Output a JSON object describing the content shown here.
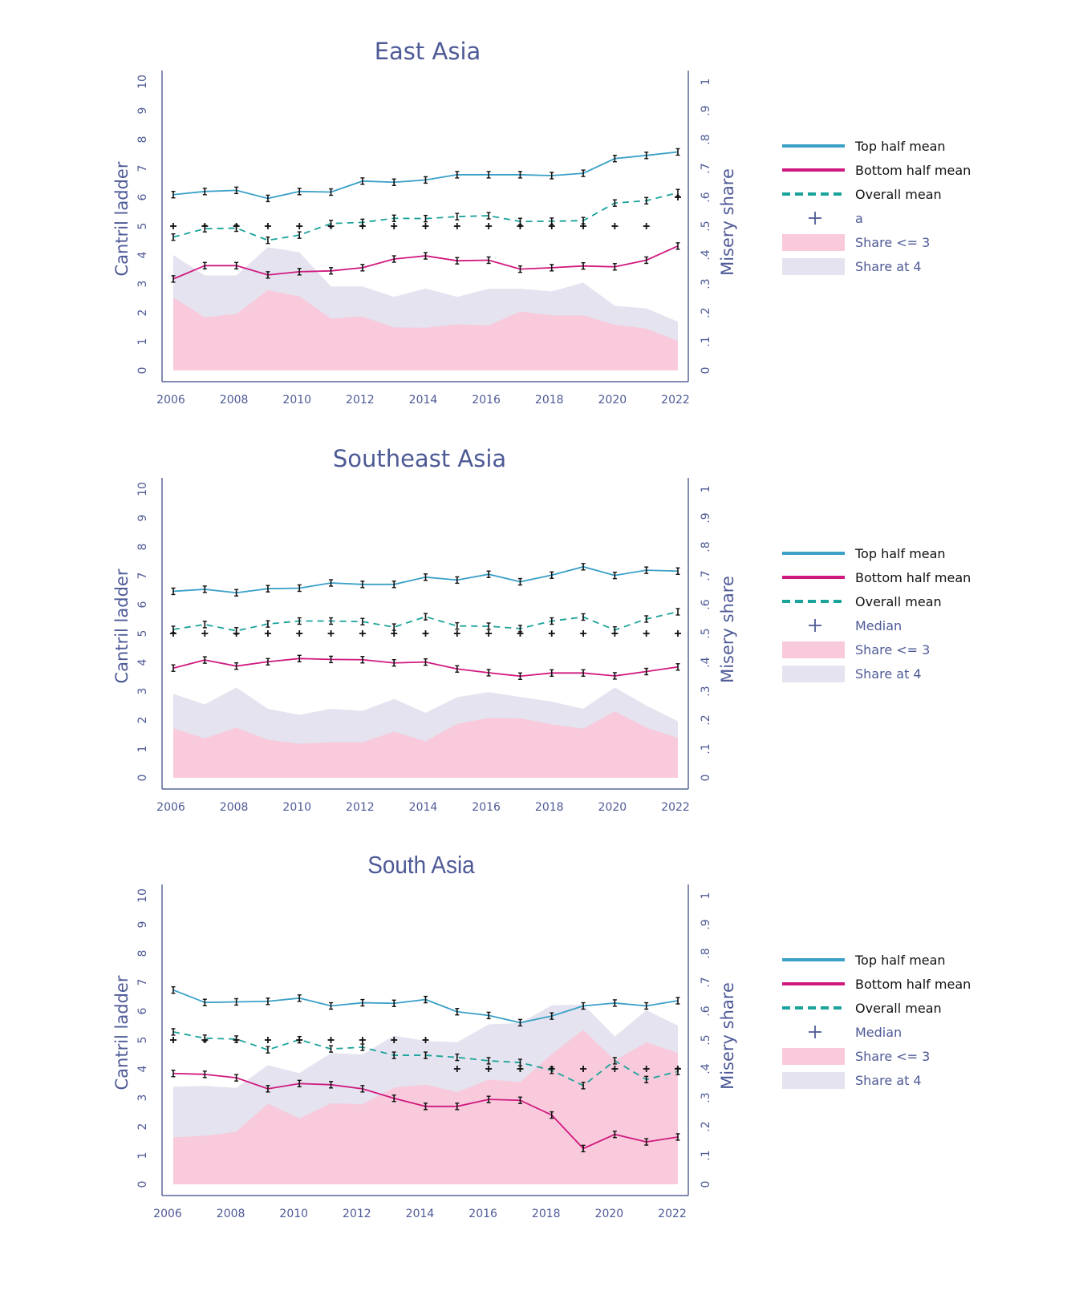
{
  "colors": {
    "top_half": "#3aa0c8",
    "bottom_half": "#d0197f",
    "overall": "#1aa39a",
    "median": "#111111",
    "share_le3": "#f8cadb",
    "share_at4": "#e4e3ef",
    "axis": "#5a6699",
    "text": "#4e5a96",
    "legend_dark": "#111111"
  },
  "chart_data": [
    {
      "type": "line",
      "title": "East Asia",
      "ylabel": "Cantril ladder",
      "ylabel_right": "Misery share",
      "ylim": [
        0,
        10
      ],
      "ylim_right": [
        0,
        1
      ],
      "yticks": [
        "0",
        "1",
        "2",
        "3",
        "4",
        "5",
        "6",
        "7",
        "8",
        "9",
        "10"
      ],
      "yticks_right": [
        "0",
        ".1",
        ".2",
        ".3",
        ".4",
        ".5",
        ".6",
        ".7",
        ".8",
        ".9",
        "1"
      ],
      "xticks": [
        "2006",
        "2008",
        "2010",
        "2012",
        "2014",
        "2016",
        "2018",
        "2020",
        "2022"
      ],
      "x": [
        2006,
        2007,
        2008,
        2009,
        2010,
        2011,
        2012,
        2013,
        2014,
        2015,
        2016,
        2017,
        2018,
        2019,
        2020,
        2021,
        2022
      ],
      "grid": false,
      "legend_placement": "right",
      "legend": [
        "Top half mean",
        "Bottom half mean",
        "Overall mean",
        "a",
        "Share <= 3",
        "Share at 4"
      ],
      "series": [
        {
          "name": "Top half mean",
          "axis": "left",
          "values": [
            6.09,
            6.2,
            6.24,
            5.96,
            6.2,
            6.18,
            6.56,
            6.52,
            6.6,
            6.78,
            6.78,
            6.78,
            6.75,
            6.83,
            7.34,
            7.45,
            7.57
          ]
        },
        {
          "name": "Bottom half mean",
          "axis": "left",
          "values": [
            3.17,
            3.63,
            3.63,
            3.31,
            3.42,
            3.45,
            3.56,
            3.86,
            3.97,
            3.8,
            3.82,
            3.51,
            3.56,
            3.62,
            3.59,
            3.82,
            4.31
          ]
        },
        {
          "name": "Overall mean",
          "axis": "left",
          "values": [
            4.62,
            4.91,
            4.93,
            4.51,
            4.69,
            5.09,
            5.13,
            5.27,
            5.26,
            5.33,
            5.36,
            5.16,
            5.17,
            5.19,
            5.8,
            5.88,
            6.16
          ]
        },
        {
          "name": "a",
          "axis": "left",
          "values": [
            5,
            5,
            5,
            5,
            5,
            5,
            5,
            5,
            5,
            5,
            5,
            5,
            5,
            5,
            5,
            5,
            6
          ]
        },
        {
          "name": "Share <= 3",
          "axis": "right",
          "values": [
            0.253,
            0.184,
            0.196,
            0.278,
            0.256,
            0.18,
            0.187,
            0.149,
            0.148,
            0.16,
            0.156,
            0.204,
            0.191,
            0.191,
            0.158,
            0.145,
            0.102
          ]
        },
        {
          "name": "Share at 4",
          "axis": "right",
          "values": [
            0.147,
            0.145,
            0.133,
            0.149,
            0.153,
            0.111,
            0.104,
            0.106,
            0.136,
            0.095,
            0.127,
            0.079,
            0.083,
            0.113,
            0.066,
            0.07,
            0.067
          ]
        }
      ]
    },
    {
      "type": "line",
      "title": "Southeast Asia",
      "ylabel": "Cantril ladder",
      "ylabel_right": "Misery share",
      "ylim": [
        0,
        10
      ],
      "ylim_right": [
        0,
        1
      ],
      "yticks": [
        "0",
        "1",
        "2",
        "3",
        "4",
        "5",
        "6",
        "7",
        "8",
        "9",
        "10"
      ],
      "yticks_right": [
        "0",
        ".1",
        ".2",
        ".3",
        ".4",
        ".5",
        ".6",
        ".7",
        ".8",
        ".9",
        "1"
      ],
      "xticks": [
        "2006",
        "2008",
        "2010",
        "2012",
        "2014",
        "2016",
        "2018",
        "2020",
        "2022"
      ],
      "x": [
        2006,
        2007,
        2008,
        2009,
        2010,
        2011,
        2012,
        2013,
        2014,
        2015,
        2016,
        2017,
        2018,
        2019,
        2020,
        2021,
        2022
      ],
      "grid": false,
      "legend_placement": "right",
      "legend": [
        "Top half mean",
        "Bottom half mean",
        "Overall mean",
        "Median",
        "Share <= 3",
        "Share at 4"
      ],
      "series": [
        {
          "name": "Top half mean",
          "axis": "left",
          "values": [
            6.46,
            6.53,
            6.41,
            6.55,
            6.57,
            6.75,
            6.7,
            6.7,
            6.95,
            6.85,
            7.05,
            6.79,
            7.02,
            7.31,
            7.01,
            7.19,
            7.16
          ]
        },
        {
          "name": "Bottom half mean",
          "axis": "left",
          "values": [
            3.8,
            4.08,
            3.87,
            4.02,
            4.13,
            4.1,
            4.09,
            3.98,
            4.01,
            3.77,
            3.64,
            3.52,
            3.63,
            3.63,
            3.53,
            3.68,
            3.84
          ]
        },
        {
          "name": "Overall mean",
          "axis": "left",
          "values": [
            5.14,
            5.31,
            5.09,
            5.33,
            5.43,
            5.43,
            5.41,
            5.22,
            5.58,
            5.26,
            5.25,
            5.17,
            5.43,
            5.57,
            5.12,
            5.5,
            5.75
          ]
        },
        {
          "name": "Median",
          "axis": "left",
          "values": [
            5,
            5,
            5,
            5,
            5,
            5,
            5,
            5,
            5,
            5,
            5,
            5,
            5,
            5,
            5,
            5,
            5
          ]
        },
        {
          "name": "Share <= 3",
          "axis": "right",
          "values": [
            0.172,
            0.136,
            0.174,
            0.132,
            0.118,
            0.123,
            0.123,
            0.16,
            0.126,
            0.187,
            0.207,
            0.206,
            0.185,
            0.17,
            0.23,
            0.174,
            0.138
          ]
        },
        {
          "name": "Share at 4",
          "axis": "right",
          "values": [
            0.119,
            0.118,
            0.139,
            0.107,
            0.1,
            0.116,
            0.109,
            0.113,
            0.099,
            0.092,
            0.09,
            0.074,
            0.079,
            0.069,
            0.083,
            0.076,
            0.058
          ]
        }
      ]
    },
    {
      "type": "line",
      "title": "South Asia",
      "ylabel": "Cantril ladder",
      "ylabel_right": "Misery share",
      "ylim": [
        0,
        10
      ],
      "ylim_right": [
        0,
        1
      ],
      "yticks": [
        "0",
        "1",
        "2",
        "3",
        "4",
        "5",
        "6",
        "7",
        "8",
        "9",
        "10"
      ],
      "yticks_right": [
        "0",
        ".1",
        ".2",
        ".3",
        ".4",
        ".5",
        ".6",
        ".7",
        ".8",
        ".9",
        "1"
      ],
      "xticks": [
        "2006",
        "2008",
        "2010",
        "2012",
        "2014",
        "2016",
        "2018",
        "2020",
        "2022"
      ],
      "x": [
        2006,
        2007,
        2008,
        2009,
        2010,
        2011,
        2012,
        2013,
        2014,
        2015,
        2016,
        2017,
        2018,
        2019,
        2020,
        2021,
        2022
      ],
      "grid": false,
      "legend_placement": "right",
      "legend": [
        "Top half mean",
        "Bottom half mean",
        "Overall mean",
        "Median",
        "Share <= 3",
        "Share at 4"
      ],
      "series": [
        {
          "name": "Top half mean",
          "axis": "left",
          "values": [
            6.73,
            6.3,
            6.32,
            6.34,
            6.45,
            6.18,
            6.29,
            6.27,
            6.4,
            5.98,
            5.85,
            5.6,
            5.83,
            6.18,
            6.28,
            6.18,
            6.36
          ]
        },
        {
          "name": "Bottom half mean",
          "axis": "left",
          "values": [
            3.84,
            3.81,
            3.69,
            3.31,
            3.49,
            3.45,
            3.31,
            2.98,
            2.7,
            2.7,
            2.94,
            2.91,
            2.4,
            1.24,
            1.73,
            1.47,
            1.64
          ]
        },
        {
          "name": "Overall mean",
          "axis": "left",
          "values": [
            5.28,
            5.06,
            5.03,
            4.66,
            5.01,
            4.69,
            4.75,
            4.47,
            4.47,
            4.4,
            4.28,
            4.22,
            3.95,
            3.42,
            4.28,
            3.63,
            3.91
          ]
        },
        {
          "name": "Median",
          "axis": "left",
          "values": [
            5,
            5,
            5,
            5,
            5,
            5,
            5,
            5,
            5,
            4,
            4,
            4,
            4,
            4,
            4,
            4,
            4
          ]
        },
        {
          "name": "Share <= 3",
          "axis": "right",
          "values": [
            0.163,
            0.168,
            0.182,
            0.279,
            0.228,
            0.281,
            0.277,
            0.335,
            0.346,
            0.319,
            0.363,
            0.354,
            0.451,
            0.535,
            0.429,
            0.492,
            0.455
          ]
        },
        {
          "name": "Share at 4",
          "axis": "right",
          "values": [
            0.175,
            0.173,
            0.152,
            0.134,
            0.157,
            0.174,
            0.173,
            0.18,
            0.151,
            0.173,
            0.191,
            0.205,
            0.169,
            0.088,
            0.083,
            0.111,
            0.095
          ]
        }
      ]
    }
  ]
}
